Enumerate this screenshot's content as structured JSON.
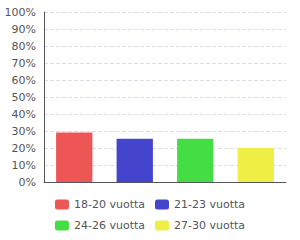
{
  "chart_data": {
    "type": "bar",
    "categories": [
      "18-20 vuotta",
      "21-23 vuotta",
      "24-26 vuotta",
      "27-30 vuotta"
    ],
    "values": [
      0.2909,
      0.2545,
      0.2545,
      0.2
    ],
    "colors": [
      "#ee5555",
      "#4444cc",
      "#44dd44",
      "#eeee44"
    ],
    "ylim": [
      0,
      1.0
    ],
    "yticks": [
      {
        "value": 0.0,
        "label": "0%"
      },
      {
        "value": 0.1,
        "label": "10%"
      },
      {
        "value": 0.2,
        "label": "20%"
      },
      {
        "value": 0.3,
        "label": "30%"
      },
      {
        "value": 0.4,
        "label": "40%"
      },
      {
        "value": 0.5,
        "label": "50%"
      },
      {
        "value": 0.6,
        "label": "60%"
      },
      {
        "value": 0.7,
        "label": "70%"
      },
      {
        "value": 0.8,
        "label": "80%"
      },
      {
        "value": 0.9,
        "label": "90%"
      },
      {
        "value": 1.0,
        "label": "100%"
      }
    ],
    "grid": true,
    "legend": "bottom",
    "tick_labels": "y"
  }
}
